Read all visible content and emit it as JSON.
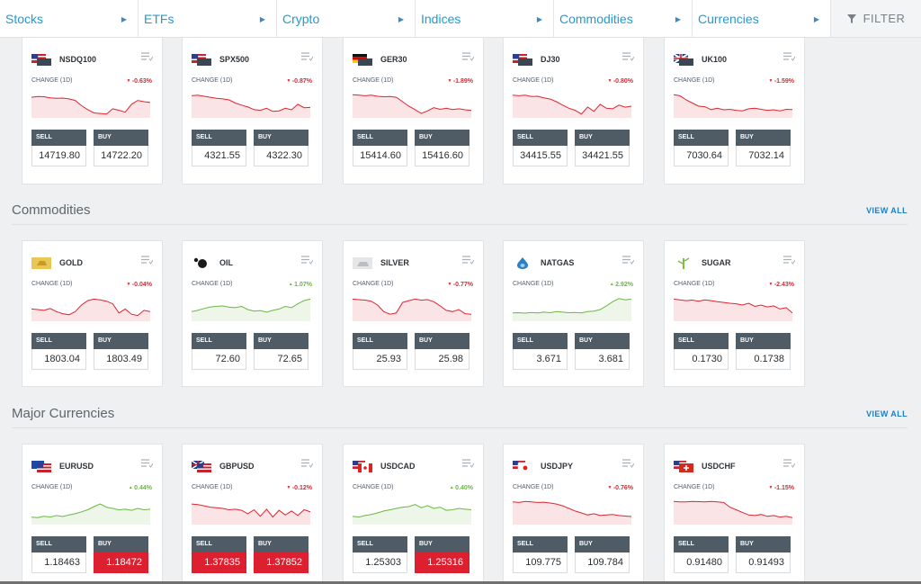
{
  "nav": {
    "items": [
      "Stocks",
      "ETFs",
      "Crypto",
      "Indices",
      "Commodities",
      "Currencies"
    ],
    "filter_label": "FILTER"
  },
  "colors": {
    "down": "#e0242f",
    "up": "#6ab840",
    "accent": "#1e9bd7",
    "buy_highlight": "#dc2030"
  },
  "labels": {
    "change": "CHANGE (1D)",
    "sell": "SELL",
    "buy": "BUY"
  },
  "sections": [
    {
      "title": "",
      "view_all": "",
      "cards": [
        {
          "symbol": "NSDQ100",
          "icon": "us-flag-icon",
          "change": "-0.63%",
          "direction": "down",
          "sell": "14719.80",
          "buy": "14722.20",
          "spark": [
            0.72,
            0.75,
            0.74,
            0.7,
            0.68,
            0.69,
            0.66,
            0.6,
            0.4,
            0.25,
            0.12,
            0.1,
            0.08,
            0.28,
            0.22,
            0.15,
            0.45,
            0.6,
            0.55,
            0.52
          ]
        },
        {
          "symbol": "SPX500",
          "icon": "us-flag-icon",
          "change": "-0.87%",
          "direction": "down",
          "sell": "4321.55",
          "buy": "4322.30",
          "spark": [
            0.78,
            0.8,
            0.76,
            0.72,
            0.68,
            0.66,
            0.62,
            0.5,
            0.42,
            0.35,
            0.25,
            0.22,
            0.3,
            0.18,
            0.2,
            0.3,
            0.24,
            0.45,
            0.32,
            0.33
          ]
        },
        {
          "symbol": "GER30",
          "icon": "germany-flag-icon",
          "change": "-1.89%",
          "direction": "down",
          "sell": "15414.60",
          "buy": "15416.60",
          "spark": [
            0.82,
            0.8,
            0.78,
            0.8,
            0.76,
            0.74,
            0.75,
            0.72,
            0.55,
            0.38,
            0.25,
            0.1,
            0.2,
            0.32,
            0.26,
            0.3,
            0.25,
            0.28,
            0.24,
            0.22
          ]
        },
        {
          "symbol": "DJ30",
          "icon": "us-flag-icon",
          "change": "-0.80%",
          "direction": "down",
          "sell": "34415.55",
          "buy": "34421.55",
          "spark": [
            0.8,
            0.78,
            0.8,
            0.75,
            0.76,
            0.7,
            0.65,
            0.55,
            0.42,
            0.3,
            0.22,
            0.08,
            0.35,
            0.18,
            0.45,
            0.3,
            0.28,
            0.42,
            0.34,
            0.38
          ]
        },
        {
          "symbol": "UK100",
          "icon": "uk-flag-icon",
          "change": "-1.59%",
          "direction": "down",
          "sell": "7030.64",
          "buy": "7032.14",
          "spark": [
            0.82,
            0.78,
            0.62,
            0.5,
            0.38,
            0.36,
            0.25,
            0.3,
            0.24,
            0.26,
            0.22,
            0.2,
            0.28,
            0.3,
            0.26,
            0.22,
            0.24,
            0.2,
            0.26,
            0.25
          ]
        }
      ]
    },
    {
      "title": "Commodities",
      "view_all": "VIEW ALL",
      "cards": [
        {
          "symbol": "GOLD",
          "icon": "gold-bar-icon",
          "change": "-0.04%",
          "direction": "down",
          "sell": "1803.04",
          "buy": "1803.49",
          "spark": [
            0.4,
            0.38,
            0.35,
            0.42,
            0.3,
            0.22,
            0.18,
            0.3,
            0.55,
            0.72,
            0.78,
            0.75,
            0.7,
            0.6,
            0.25,
            0.4,
            0.2,
            0.15,
            0.35,
            0.3
          ]
        },
        {
          "symbol": "OIL",
          "icon": "oil-drop-icon",
          "change": "1.07%",
          "direction": "up",
          "sell": "72.60",
          "buy": "72.65",
          "spark": [
            0.3,
            0.35,
            0.42,
            0.48,
            0.5,
            0.52,
            0.47,
            0.45,
            0.5,
            0.38,
            0.32,
            0.34,
            0.28,
            0.35,
            0.4,
            0.5,
            0.45,
            0.6,
            0.72,
            0.78
          ]
        },
        {
          "symbol": "SILVER",
          "icon": "silver-bar-icon",
          "change": "-0.77%",
          "direction": "down",
          "sell": "25.93",
          "buy": "25.98",
          "spark": [
            0.78,
            0.76,
            0.74,
            0.7,
            0.55,
            0.3,
            0.2,
            0.25,
            0.65,
            0.72,
            0.78,
            0.74,
            0.76,
            0.68,
            0.52,
            0.35,
            0.3,
            0.38,
            0.22,
            0.2
          ]
        },
        {
          "symbol": "NATGAS",
          "icon": "gas-flame-icon",
          "change": "2.92%",
          "direction": "up",
          "sell": "3.671",
          "buy": "3.681",
          "spark": [
            0.25,
            0.26,
            0.24,
            0.27,
            0.25,
            0.28,
            0.26,
            0.3,
            0.28,
            0.26,
            0.27,
            0.25,
            0.3,
            0.32,
            0.38,
            0.52,
            0.68,
            0.8,
            0.75,
            0.78
          ]
        },
        {
          "symbol": "SUGAR",
          "icon": "sugar-cane-icon",
          "change": "-2.43%",
          "direction": "down",
          "sell": "0.1730",
          "buy": "0.1738",
          "spark": [
            0.78,
            0.75,
            0.72,
            0.74,
            0.7,
            0.75,
            0.72,
            0.68,
            0.65,
            0.62,
            0.6,
            0.55,
            0.62,
            0.5,
            0.55,
            0.48,
            0.52,
            0.4,
            0.45,
            0.25
          ]
        }
      ]
    },
    {
      "title": "Major Currencies",
      "view_all": "VIEW ALL",
      "cards": [
        {
          "symbol": "EURUSD",
          "icon": "eu-us-flag-icon",
          "change": "0.44%",
          "direction": "up",
          "sell": "1.18463",
          "buy": "1.18472",
          "buy_highlight": true,
          "spark": [
            0.22,
            0.2,
            0.25,
            0.22,
            0.28,
            0.24,
            0.3,
            0.35,
            0.42,
            0.5,
            0.62,
            0.72,
            0.6,
            0.55,
            0.5,
            0.52,
            0.48,
            0.55,
            0.5,
            0.52
          ]
        },
        {
          "symbol": "GBPUSD",
          "icon": "uk-us-flag-icon",
          "change": "-0.12%",
          "direction": "down",
          "sell": "1.37835",
          "buy": "1.37852",
          "sell_highlight": true,
          "buy_highlight": true,
          "spark": [
            0.72,
            0.7,
            0.65,
            0.6,
            0.58,
            0.55,
            0.5,
            0.52,
            0.48,
            0.35,
            0.5,
            0.25,
            0.52,
            0.22,
            0.48,
            0.3,
            0.45,
            0.28,
            0.5,
            0.42
          ]
        },
        {
          "symbol": "USDCAD",
          "icon": "us-canada-flag-icon",
          "change": "0.40%",
          "direction": "up",
          "sell": "1.25303",
          "buy": "1.25316",
          "buy_highlight": true,
          "spark": [
            0.25,
            0.22,
            0.28,
            0.32,
            0.38,
            0.45,
            0.5,
            0.55,
            0.6,
            0.62,
            0.7,
            0.58,
            0.66,
            0.55,
            0.6,
            0.48,
            0.5,
            0.55,
            0.52,
            0.5
          ]
        },
        {
          "symbol": "USDJPY",
          "icon": "us-japan-flag-icon",
          "change": "-0.76%",
          "direction": "down",
          "sell": "109.775",
          "buy": "109.784",
          "spark": [
            0.8,
            0.78,
            0.82,
            0.8,
            0.78,
            0.79,
            0.76,
            0.72,
            0.65,
            0.55,
            0.45,
            0.38,
            0.3,
            0.35,
            0.28,
            0.3,
            0.32,
            0.28,
            0.26,
            0.24
          ]
        },
        {
          "symbol": "USDCHF",
          "icon": "us-swiss-flag-icon",
          "change": "-1.15%",
          "direction": "down",
          "sell": "0.91480",
          "buy": "0.91493",
          "spark": [
            0.82,
            0.8,
            0.8,
            0.82,
            0.81,
            0.8,
            0.82,
            0.8,
            0.78,
            0.6,
            0.5,
            0.4,
            0.3,
            0.28,
            0.32,
            0.25,
            0.28,
            0.22,
            0.25,
            0.2
          ]
        }
      ]
    }
  ]
}
